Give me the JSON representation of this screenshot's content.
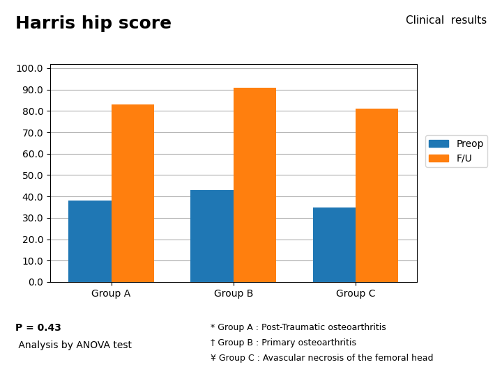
{
  "chart_data": {
    "type": "bar",
    "title": "Harris hip score",
    "subtitle": "Clinical  results",
    "categories": [
      "Group A",
      "Group B",
      "Group C"
    ],
    "series": [
      {
        "name": "Preop",
        "values": [
          38.0,
          43.0,
          35.0
        ]
      },
      {
        "name": "F/U",
        "values": [
          83.0,
          91.0,
          81.0
        ]
      }
    ],
    "ylim": [
      0,
      102
    ],
    "yticks": [
      {
        "value": 0,
        "label": "0.0"
      },
      {
        "value": 10,
        "label": "10.0"
      },
      {
        "value": 20,
        "label": "20.0"
      },
      {
        "value": 30,
        "label": "30.0"
      },
      {
        "value": 40,
        "label": "40.0"
      },
      {
        "value": 50,
        "label": "50.0"
      },
      {
        "value": 60,
        "label": "60.0"
      },
      {
        "value": 70,
        "label": "70.0"
      },
      {
        "value": 80,
        "label": "80.0"
      },
      {
        "value": 90,
        "label": "90.0"
      },
      {
        "value": 100,
        "label": "100.0"
      }
    ],
    "grid": true,
    "legend": "right",
    "annotations": [
      "P = 0.43",
      " Analysis by ANOVA test",
      "* Group A : Post-Traumatic osteoarthritis",
      "† Group B : Primary osteoarthritis",
      "¥ Group C : Avascular necrosis of the femoral head"
    ]
  }
}
